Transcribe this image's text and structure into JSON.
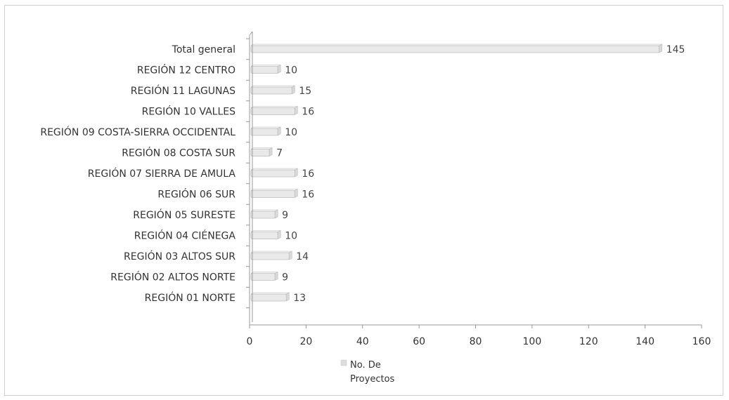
{
  "chart_data": {
    "type": "bar",
    "orientation": "horizontal",
    "categories": [
      "Total general",
      "REGIÓN 12 CENTRO",
      "REGIÓN 11 LAGUNAS",
      "REGIÓN 10 VALLES",
      "REGIÓN 09 COSTA-SIERRA OCCIDENTAL",
      "REGIÓN 08 COSTA SUR",
      "REGIÓN 07 SIERRA DE AMULA",
      "REGIÓN 06 SUR",
      "REGIÓN 05 SURESTE",
      "REGIÓN 04 CIÉNEGA",
      "REGIÓN 03 ALTOS SUR",
      "REGIÓN 02 ALTOS NORTE",
      "REGIÓN 01 NORTE"
    ],
    "series": [
      {
        "name": "No. De Proyectos",
        "values": [
          145,
          10,
          15,
          16,
          10,
          7,
          16,
          16,
          9,
          10,
          14,
          9,
          13
        ]
      }
    ],
    "xlim": [
      0,
      160
    ],
    "xticks": [
      0,
      20,
      40,
      60,
      80,
      100,
      120,
      140,
      160
    ],
    "grid": false,
    "legend_position": "bottom",
    "legend_lines": [
      "No. De",
      "Proyectos"
    ],
    "colors": {
      "bar_fill": "#e9e9e9",
      "bar_stroke": "#bdbdbd",
      "axis": "#9a9a9a",
      "legend_swatch": "#dcdcdc"
    }
  }
}
